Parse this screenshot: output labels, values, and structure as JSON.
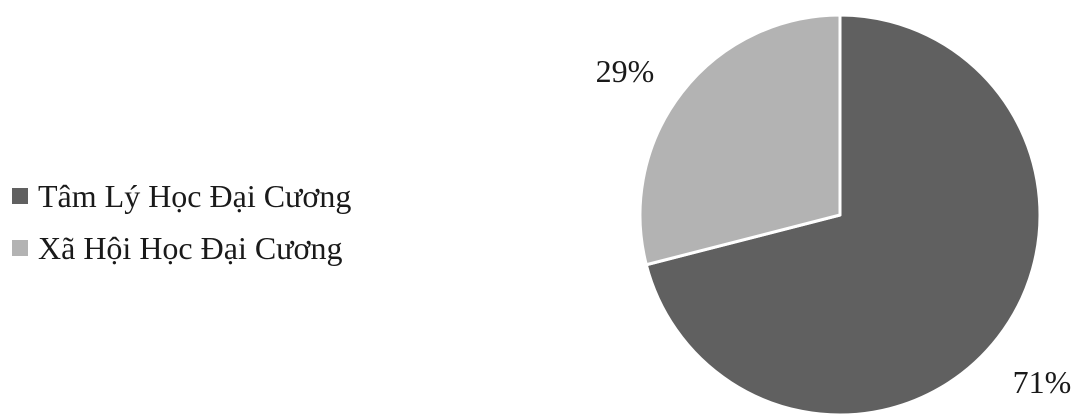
{
  "chart_data": {
    "type": "pie",
    "title": "",
    "legend_position": "left",
    "start_angle_deg": 0,
    "direction": "clockwise",
    "slices": [
      {
        "label": "Tâm Lý Học Đại Cương",
        "value": 71,
        "data_label": "71%",
        "color": "#606060"
      },
      {
        "label": "Xã Hội Học Đại Cương",
        "value": 29,
        "data_label": "29%",
        "color": "#b3b3b3"
      }
    ]
  }
}
